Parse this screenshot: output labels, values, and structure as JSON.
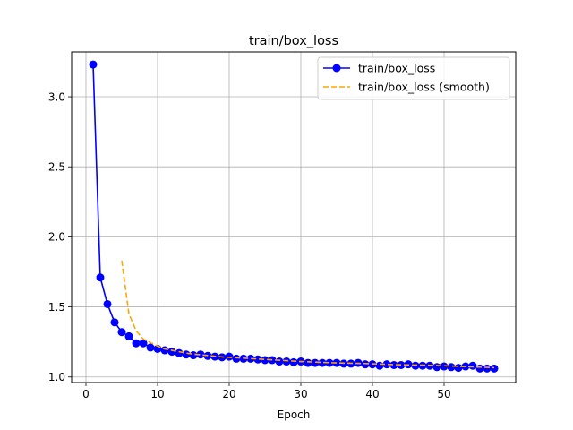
{
  "chart_data": {
    "type": "line",
    "title": "train/box_loss",
    "xlabel": "Epoch",
    "ylabel": "",
    "xlim": [
      -2,
      60
    ],
    "ylim": [
      0.96,
      3.32
    ],
    "xticks": [
      0,
      10,
      20,
      30,
      40,
      50
    ],
    "yticks": [
      1.0,
      1.5,
      2.0,
      2.5,
      3.0
    ],
    "xtick_labels": [
      "0",
      "10",
      "20",
      "30",
      "40",
      "50"
    ],
    "ytick_labels": [
      "1.0",
      "1.5",
      "2.0",
      "2.5",
      "3.0"
    ],
    "grid": true,
    "legend_position": "top-right",
    "series": [
      {
        "name": "train/box_loss",
        "style": "solid-line-with-circle-markers",
        "color": "#0000ff",
        "x": [
          1,
          2,
          3,
          4,
          5,
          6,
          7,
          8,
          9,
          10,
          11,
          12,
          13,
          14,
          15,
          16,
          17,
          18,
          19,
          20,
          21,
          22,
          23,
          24,
          25,
          26,
          27,
          28,
          29,
          30,
          31,
          32,
          33,
          34,
          35,
          36,
          37,
          38,
          39,
          40,
          41,
          42,
          43,
          44,
          45,
          46,
          47,
          48,
          49,
          50,
          51,
          52,
          53,
          54,
          55,
          56,
          57
        ],
        "y": [
          3.23,
          1.71,
          1.52,
          1.39,
          1.32,
          1.29,
          1.24,
          1.24,
          1.21,
          1.2,
          1.19,
          1.18,
          1.17,
          1.16,
          1.155,
          1.16,
          1.15,
          1.145,
          1.14,
          1.145,
          1.13,
          1.13,
          1.13,
          1.125,
          1.12,
          1.12,
          1.11,
          1.11,
          1.105,
          1.11,
          1.1,
          1.1,
          1.1,
          1.1,
          1.1,
          1.095,
          1.095,
          1.1,
          1.09,
          1.09,
          1.08,
          1.09,
          1.085,
          1.085,
          1.09,
          1.08,
          1.08,
          1.08,
          1.07,
          1.075,
          1.07,
          1.065,
          1.075,
          1.08,
          1.06,
          1.06,
          1.06
        ]
      },
      {
        "name": "train/box_loss (smooth)",
        "style": "dashed-line",
        "color": "#ffa500",
        "x": [
          5,
          6,
          7,
          8,
          9,
          10,
          11,
          12,
          13,
          14,
          15,
          16,
          17,
          18,
          19,
          20,
          21,
          22,
          23,
          24,
          25,
          26,
          27,
          28,
          29,
          30,
          31,
          32,
          33,
          34,
          35,
          36,
          37,
          38,
          39,
          40,
          41,
          42,
          43,
          44,
          45,
          46,
          47,
          48,
          49,
          50,
          51,
          52,
          53,
          54,
          55,
          56,
          57
        ],
        "y": [
          1.83,
          1.45,
          1.33,
          1.27,
          1.245,
          1.22,
          1.2,
          1.19,
          1.18,
          1.17,
          1.163,
          1.158,
          1.153,
          1.148,
          1.143,
          1.14,
          1.137,
          1.134,
          1.131,
          1.128,
          1.125,
          1.122,
          1.119,
          1.116,
          1.113,
          1.11,
          1.108,
          1.106,
          1.104,
          1.102,
          1.1,
          1.099,
          1.098,
          1.097,
          1.096,
          1.094,
          1.092,
          1.09,
          1.088,
          1.087,
          1.086,
          1.085,
          1.084,
          1.083,
          1.082,
          1.08,
          1.078,
          1.076,
          1.074,
          1.072,
          1.07,
          1.068,
          1.066
        ]
      }
    ]
  }
}
